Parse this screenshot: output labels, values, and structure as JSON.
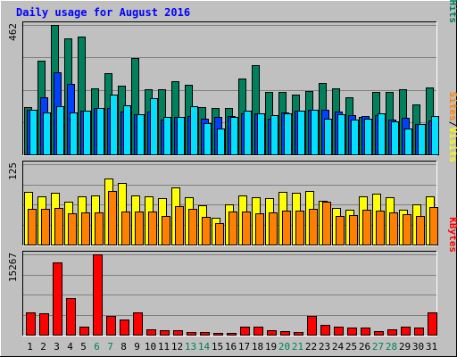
{
  "colors": {
    "background": "#c0c0c0",
    "plot_bg": "#c0c0c0",
    "hits": "#00805c",
    "files": "#0040ff",
    "pages": "#00e0ff",
    "visits": "#ffff00",
    "sites": "#ff8000",
    "kbytes": "#ff0000",
    "title": "#0000ff",
    "weekend_label": "#00805c",
    "weekday_label": "#000000"
  },
  "chart_data": [
    {
      "type": "bar",
      "title": "Daily usage for August 2016",
      "y_max_label": "462",
      "ylim": [
        0,
        462
      ],
      "legend": [
        "Pages",
        "/",
        "Files",
        "/",
        "Hits"
      ],
      "categories": [
        "1",
        "2",
        "3",
        "4",
        "5",
        "6",
        "7",
        "8",
        "9",
        "10",
        "11",
        "12",
        "13",
        "14",
        "15",
        "16",
        "17",
        "18",
        "19",
        "20",
        "21",
        "22",
        "23",
        "24",
        "25",
        "26",
        "27",
        "28",
        "29",
        "30",
        "31"
      ],
      "weekend_days": [
        "6",
        "7",
        "13",
        "14",
        "20",
        "21",
        "27",
        "28"
      ],
      "series": [
        {
          "name": "Hits",
          "values": [
            170,
            336,
            462,
            414,
            422,
            235,
            291,
            245,
            343,
            233,
            233,
            260,
            250,
            168,
            167,
            166,
            270,
            320,
            222,
            222,
            215,
            225,
            255,
            235,
            205,
            135,
            223,
            222,
            233,
            178,
            240
          ]
        },
        {
          "name": "Files",
          "values": [
            160,
            205,
            292,
            253,
            155,
            165,
            166,
            152,
            143,
            153,
            125,
            135,
            138,
            126,
            133,
            137,
            148,
            148,
            126,
            150,
            156,
            160,
            158,
            152,
            140,
            136,
            140,
            125,
            132,
            107,
            120
          ]
        },
        {
          "name": "Pages",
          "values": [
            160,
            150,
            171,
            151,
            155,
            165,
            215,
            174,
            143,
            201,
            135,
            135,
            171,
            111,
            92,
            134,
            157,
            148,
            139,
            145,
            157,
            160,
            129,
            142,
            124,
            128,
            146,
            118,
            93,
            107,
            137
          ]
        }
      ]
    },
    {
      "type": "bar",
      "y_max_label": "125",
      "ylim": [
        0,
        125
      ],
      "legend": [
        "Sites",
        "/",
        "Visits"
      ],
      "categories": [
        "1",
        "2",
        "3",
        "4",
        "5",
        "6",
        "7",
        "8",
        "9",
        "10",
        "11",
        "12",
        "13",
        "14",
        "15",
        "16",
        "17",
        "18",
        "19",
        "20",
        "21",
        "22",
        "23",
        "24",
        "25",
        "26",
        "27",
        "28",
        "29",
        "30",
        "31"
      ],
      "series": [
        {
          "name": "Visits",
          "values": [
            82,
            75,
            80,
            67,
            75,
            77,
            103,
            96,
            76,
            75,
            72,
            89,
            73,
            61,
            42,
            63,
            77,
            74,
            72,
            82,
            81,
            84,
            68,
            57,
            54,
            75,
            79,
            74,
            54,
            63,
            75
          ]
        },
        {
          "name": "Sites",
          "values": [
            55,
            55,
            57,
            48,
            50,
            50,
            84,
            52,
            52,
            51,
            44,
            60,
            56,
            43,
            33,
            52,
            51,
            48,
            50,
            53,
            53,
            56,
            66,
            45,
            46,
            54,
            53,
            50,
            47,
            45,
            58
          ]
        }
      ]
    },
    {
      "type": "bar",
      "y_max_label": "15267",
      "ylim": [
        0,
        15267
      ],
      "legend": [
        "KBytes"
      ],
      "categories": [
        "1",
        "2",
        "3",
        "4",
        "5",
        "6",
        "7",
        "8",
        "9",
        "10",
        "11",
        "12",
        "13",
        "14",
        "15",
        "16",
        "17",
        "18",
        "19",
        "20",
        "21",
        "22",
        "23",
        "24",
        "25",
        "26",
        "27",
        "28",
        "29",
        "30",
        "31"
      ],
      "series": [
        {
          "name": "KBytes",
          "values": [
            4200,
            4000,
            13800,
            6900,
            1500,
            15267,
            3600,
            2900,
            4200,
            1100,
            800,
            800,
            500,
            500,
            400,
            300,
            1600,
            1600,
            800,
            600,
            500,
            3600,
            1900,
            1500,
            1400,
            1400,
            700,
            1100,
            1500,
            1400,
            4200
          ]
        }
      ]
    }
  ]
}
